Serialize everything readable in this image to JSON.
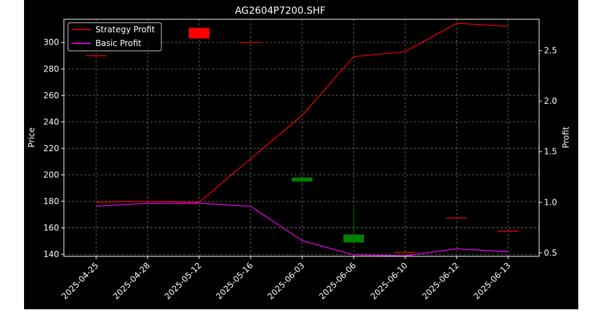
{
  "chart_data": {
    "type": "candlestick+line",
    "title": "AG2604P7200.SHF",
    "xlabel": "",
    "ylabel_left": "Price",
    "ylabel_right": "Profit",
    "categories": [
      "2025-04-25",
      "2025-04-28",
      "2025-05-12",
      "2025-05-16",
      "2025-06-03",
      "2025-06-06",
      "2025-06-10",
      "2025-06-12",
      "2025-06-13"
    ],
    "ylim_left": [
      138.5,
      317.5
    ],
    "ylim_right": [
      0.465,
      2.81
    ],
    "yticks_left": [
      140,
      160,
      180,
      200,
      220,
      240,
      260,
      280,
      300
    ],
    "yticks_right": [
      0.5,
      1.0,
      1.5,
      2.0,
      2.5
    ],
    "candles": [
      {
        "x": "2025-04-25",
        "open": 290,
        "close": 290,
        "high": 290,
        "low": 288,
        "color": "#ff0000"
      },
      {
        "x": "2025-05-12",
        "open": 311,
        "close": 303,
        "high": 311,
        "low": 303,
        "color": "#ff0000"
      },
      {
        "x": "2025-05-16",
        "open": 300,
        "close": 300,
        "high": 300,
        "low": 300,
        "color": "#ff0000"
      },
      {
        "x": "2025-06-03",
        "open": 195,
        "close": 198,
        "high": 198,
        "low": 193,
        "color": "#008000"
      },
      {
        "x": "2025-06-06",
        "open": 149,
        "close": 155,
        "high": 175,
        "low": 149,
        "color": "#008000"
      },
      {
        "x": "2025-06-10",
        "open": 141.5,
        "close": 141.5,
        "high": 141.5,
        "low": 141.5,
        "color": "#ff0000"
      },
      {
        "x": "2025-06-12",
        "open": 167.5,
        "close": 167.5,
        "high": 167.5,
        "low": 167.5,
        "color": "#ff0000"
      },
      {
        "x": "2025-06-13",
        "open": 157.5,
        "close": 157.5,
        "high": 157.5,
        "low": 157.5,
        "color": "#ff0000"
      }
    ],
    "series": [
      {
        "name": "Strategy Profit",
        "color": "#ff0000",
        "values": [
          1.0,
          1.01,
          1.0,
          1.43,
          1.86,
          2.44,
          2.49,
          2.77,
          2.74
        ]
      },
      {
        "name": "Basic Profit",
        "color": "#ff00ff",
        "values": [
          0.96,
          0.99,
          0.99,
          0.96,
          0.62,
          0.48,
          0.47,
          0.54,
          0.51
        ]
      }
    ],
    "grid": true,
    "legend_position": "top-left"
  }
}
